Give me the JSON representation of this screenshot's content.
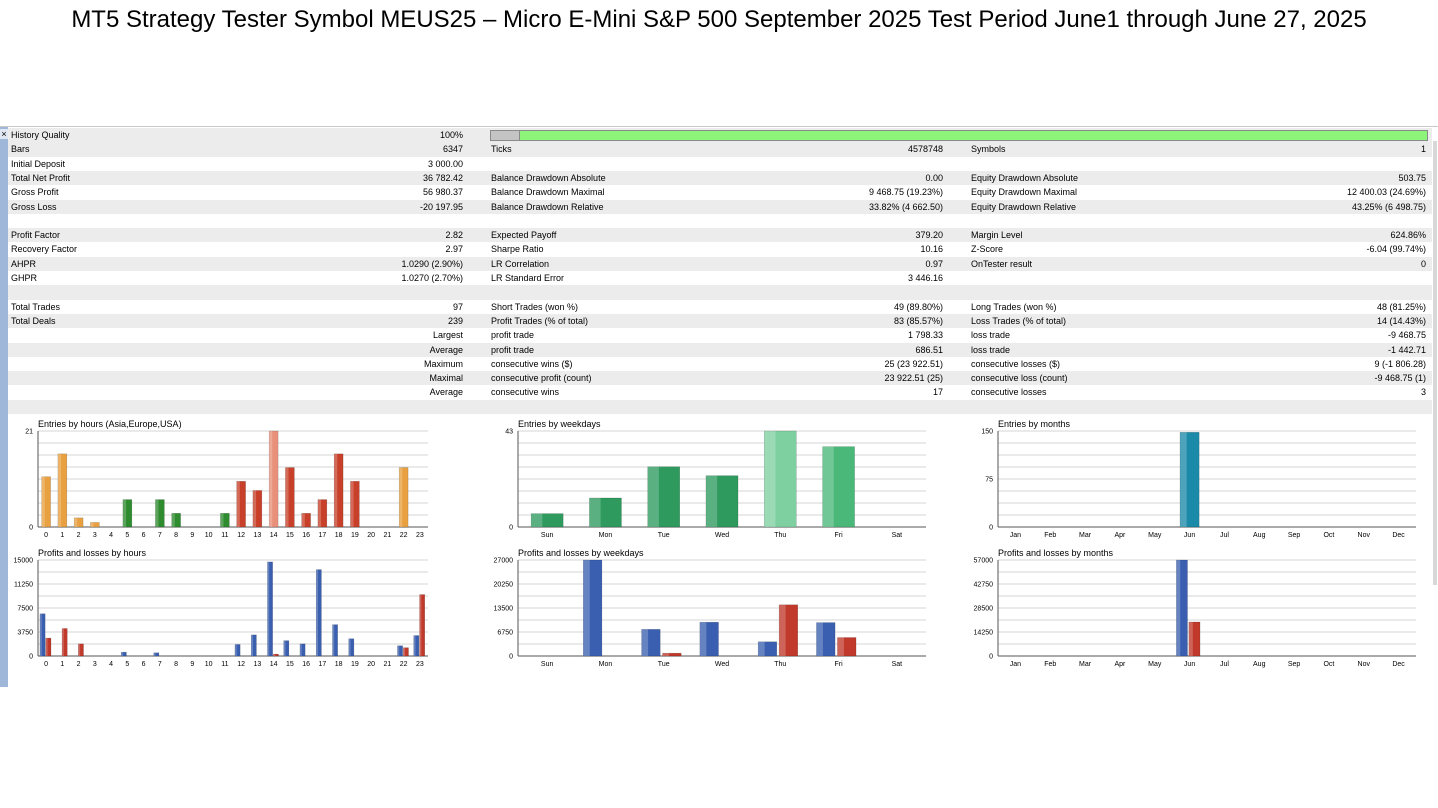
{
  "slide_title": "MT5 Strategy Tester  Symbol MEUS25 – Micro E-Mini S&P 500 September 2025 Test Period June1 through June 27, 2025",
  "close_icon": "×",
  "history_quality": {
    "label": "History Quality",
    "value": "100%",
    "fill": 1.0
  },
  "rows": [
    {
      "shade": true,
      "l1": "Bars",
      "v1": "6347",
      "l2": "Ticks",
      "v2": "4578748",
      "l3": "Symbols",
      "v3": "1"
    },
    {
      "shade": false,
      "l1": "Initial Deposit",
      "v1": "3 000.00",
      "l2": "",
      "v2": "",
      "l3": "",
      "v3": ""
    },
    {
      "shade": true,
      "l1": "Total Net Profit",
      "v1": "36 782.42",
      "l2": "Balance Drawdown Absolute",
      "v2": "0.00",
      "l3": "Equity Drawdown Absolute",
      "v3": "503.75"
    },
    {
      "shade": false,
      "l1": "Gross Profit",
      "v1": "56 980.37",
      "l2": "Balance Drawdown Maximal",
      "v2": "9 468.75 (19.23%)",
      "l3": "Equity Drawdown Maximal",
      "v3": "12 400.03 (24.69%)"
    },
    {
      "shade": true,
      "l1": "Gross Loss",
      "v1": "-20 197.95",
      "l2": "Balance Drawdown Relative",
      "v2": "33.82% (4 662.50)",
      "l3": "Equity Drawdown Relative",
      "v3": "43.25% (6 498.75)"
    },
    {
      "shade": false,
      "l1": "",
      "v1": "",
      "l2": "",
      "v2": "",
      "l3": "",
      "v3": ""
    },
    {
      "shade": true,
      "l1": "Profit Factor",
      "v1": "2.82",
      "l2": "Expected Payoff",
      "v2": "379.20",
      "l3": "Margin Level",
      "v3": "624.86%"
    },
    {
      "shade": false,
      "l1": "Recovery Factor",
      "v1": "2.97",
      "l2": "Sharpe Ratio",
      "v2": "10.16",
      "l3": "Z-Score",
      "v3": "-6.04 (99.74%)"
    },
    {
      "shade": true,
      "l1": "AHPR",
      "v1": "1.0290 (2.90%)",
      "l2": "LR Correlation",
      "v2": "0.97",
      "l3": "OnTester result",
      "v3": "0"
    },
    {
      "shade": false,
      "l1": "GHPR",
      "v1": "1.0270 (2.70%)",
      "l2": "LR Standard Error",
      "v2": "3 446.16",
      "l3": "",
      "v3": ""
    },
    {
      "shade": true,
      "l1": "",
      "v1": "",
      "l2": "",
      "v2": "",
      "l3": "",
      "v3": ""
    },
    {
      "shade": false,
      "l1": "Total Trades",
      "v1": "97",
      "l2": "Short Trades (won %)",
      "v2": "49 (89.80%)",
      "l3": "Long Trades (won %)",
      "v3": "48 (81.25%)"
    },
    {
      "shade": true,
      "l1": "Total Deals",
      "v1": "239",
      "l2": "Profit Trades (% of total)",
      "v2": "83 (85.57%)",
      "l3": "Loss Trades (% of total)",
      "v3": "14 (14.43%)"
    },
    {
      "shade": false,
      "l1": "",
      "v1": "Largest",
      "l2": "profit trade",
      "v2": "1 798.33",
      "l3": "loss trade",
      "v3": "-9 468.75"
    },
    {
      "shade": true,
      "l1": "",
      "v1": "Average",
      "l2": "profit trade",
      "v2": "686.51",
      "l3": "loss trade",
      "v3": "-1 442.71"
    },
    {
      "shade": false,
      "l1": "",
      "v1": "Maximum",
      "l2": "consecutive wins ($)",
      "v2": "25 (23 922.51)",
      "l3": "consecutive losses ($)",
      "v3": "9 (-1 806.28)"
    },
    {
      "shade": true,
      "l1": "",
      "v1": "Maximal",
      "l2": "consecutive profit (count)",
      "v2": "23 922.51 (25)",
      "l3": "consecutive loss (count)",
      "v3": "-9 468.75 (1)"
    },
    {
      "shade": false,
      "l1": "",
      "v1": "Average",
      "l2": "consecutive wins",
      "v2": "17",
      "l3": "consecutive losses",
      "v3": "3"
    },
    {
      "shade": true,
      "l1": "",
      "v1": "",
      "l2": "",
      "v2": "",
      "l3": "",
      "v3": ""
    }
  ],
  "chart_data": [
    {
      "id": "entries-hours",
      "type": "bar",
      "title": "Entries by hours (Asia,Europe,USA)",
      "categories": [
        "0",
        "1",
        "2",
        "3",
        "4",
        "5",
        "6",
        "7",
        "8",
        "9",
        "10",
        "11",
        "12",
        "13",
        "14",
        "15",
        "16",
        "17",
        "18",
        "19",
        "20",
        "21",
        "22",
        "23"
      ],
      "ylim": [
        0,
        21
      ],
      "yticks": [
        "0",
        "21"
      ],
      "grid": true,
      "series": [
        {
          "values": [
            11,
            16,
            2,
            1,
            0,
            6,
            0,
            6,
            3,
            0,
            0,
            3,
            10,
            8,
            21,
            13,
            3,
            6,
            16,
            10,
            0,
            0,
            13,
            0
          ],
          "colors": [
            "#e8a040",
            "#e8a040",
            "#e8a040",
            "#e8a040",
            "#e8a040",
            "#2e8b2e",
            "#2e8b2e",
            "#2e8b2e",
            "#2e8b2e",
            "#2e8b2e",
            "#2e8b2e",
            "#2e8b2e",
            "#c8402a",
            "#c8402a",
            "#e8907a",
            "#c8402a",
            "#c8402a",
            "#c8402a",
            "#c8402a",
            "#c8402a",
            "#c8402a",
            "#c8402a",
            "#e8a040",
            "#e8a040"
          ]
        }
      ]
    },
    {
      "id": "entries-weekdays",
      "type": "bar",
      "title": "Entries by weekdays",
      "categories": [
        "Sun",
        "Mon",
        "Tue",
        "Wed",
        "Thu",
        "Fri",
        "Sat"
      ],
      "ylim": [
        0,
        43
      ],
      "yticks": [
        "0",
        "43"
      ],
      "grid": true,
      "series": [
        {
          "values": [
            6,
            13,
            27,
            23,
            43,
            36,
            0
          ],
          "colors": [
            "#2e9a5e",
            "#2e9a5e",
            "#2e9a5e",
            "#2e9a5e",
            "#7ed0a0",
            "#4ab878",
            "#2e9a5e"
          ]
        }
      ]
    },
    {
      "id": "entries-months",
      "type": "bar",
      "title": "Entries by months",
      "categories": [
        "Jan",
        "Feb",
        "Mar",
        "Apr",
        "May",
        "Jun",
        "Jul",
        "Aug",
        "Sep",
        "Oct",
        "Nov",
        "Dec"
      ],
      "ylim": [
        0,
        150
      ],
      "yticks": [
        "0",
        "75",
        "150"
      ],
      "grid": true,
      "series": [
        {
          "values": [
            0,
            0,
            0,
            0,
            0,
            148,
            0,
            0,
            0,
            0,
            0,
            0
          ],
          "colors": [
            "#1a8aa8",
            "#1a8aa8",
            "#1a8aa8",
            "#1a8aa8",
            "#1a8aa8",
            "#1a8aa8",
            "#1a8aa8",
            "#1a8aa8",
            "#1a8aa8",
            "#1a8aa8",
            "#1a8aa8",
            "#1a8aa8"
          ]
        }
      ]
    },
    {
      "id": "pl-hours",
      "type": "bar",
      "title": "Profits and losses by hours",
      "categories": [
        "0",
        "1",
        "2",
        "3",
        "4",
        "5",
        "6",
        "7",
        "8",
        "9",
        "10",
        "11",
        "12",
        "13",
        "14",
        "15",
        "16",
        "17",
        "18",
        "19",
        "20",
        "21",
        "22",
        "23"
      ],
      "ylim": [
        0,
        15000
      ],
      "yticks": [
        "0",
        "3750",
        "7500",
        "11250",
        "15000"
      ],
      "grid": true,
      "series": [
        {
          "name": "profit",
          "color": "#3a5fb0",
          "values": [
            6600,
            0,
            0,
            0,
            0,
            600,
            0,
            500,
            0,
            0,
            0,
            0,
            1800,
            3300,
            14700,
            2400,
            1900,
            13500,
            4900,
            2700,
            0,
            0,
            1600,
            3200
          ]
        },
        {
          "name": "loss",
          "color": "#c0392b",
          "values": [
            2800,
            4300,
            1900,
            0,
            0,
            0,
            0,
            0,
            0,
            0,
            0,
            0,
            0,
            0,
            300,
            0,
            0,
            0,
            0,
            0,
            0,
            0,
            1300,
            9600
          ]
        }
      ]
    },
    {
      "id": "pl-weekdays",
      "type": "bar",
      "title": "Profits and losses by weekdays",
      "categories": [
        "Sun",
        "Mon",
        "Tue",
        "Wed",
        "Thu",
        "Fri",
        "Sat"
      ],
      "ylim": [
        0,
        27000
      ],
      "yticks": [
        "0",
        "6750",
        "13500",
        "20250",
        "27000"
      ],
      "grid": true,
      "series": [
        {
          "name": "profit",
          "color": "#3a5fb0",
          "values": [
            0,
            27000,
            7500,
            9500,
            4000,
            9400,
            0
          ]
        },
        {
          "name": "loss",
          "color": "#c0392b",
          "values": [
            0,
            0,
            800,
            0,
            14400,
            5200,
            0
          ]
        }
      ]
    },
    {
      "id": "pl-months",
      "type": "bar",
      "title": "Profits and losses by months",
      "categories": [
        "Jan",
        "Feb",
        "Mar",
        "Apr",
        "May",
        "Jun",
        "Jul",
        "Aug",
        "Sep",
        "Oct",
        "Nov",
        "Dec"
      ],
      "ylim": [
        0,
        57000
      ],
      "yticks": [
        "0",
        "14250",
        "28500",
        "42750",
        "57000"
      ],
      "grid": true,
      "series": [
        {
          "name": "profit",
          "color": "#3a5fb0",
          "values": [
            0,
            0,
            0,
            0,
            0,
            57000,
            0,
            0,
            0,
            0,
            0,
            0
          ]
        },
        {
          "name": "loss",
          "color": "#c0392b",
          "values": [
            0,
            0,
            0,
            0,
            0,
            20200,
            0,
            0,
            0,
            0,
            0,
            0
          ]
        }
      ]
    }
  ]
}
